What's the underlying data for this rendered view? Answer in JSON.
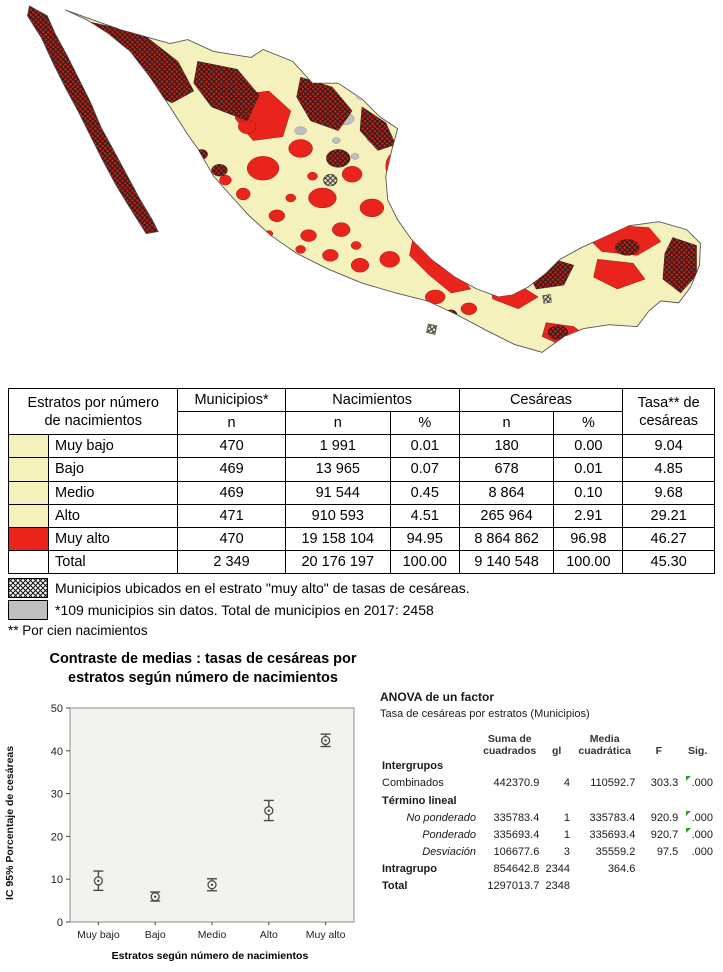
{
  "map": {
    "region_colors": {
      "estratos_bajos_a_alto": "#F5F1BC",
      "estrato_muy_alto": "#E8241C",
      "sin_datos": "#BFBFBF",
      "hatch_tasa_muy_alto": "#1B1B1B"
    }
  },
  "table": {
    "header": {
      "col1_line1": "Estratos por número",
      "col1_line2": "de nacimientos",
      "municipios": "Municipios*",
      "municipios_sub": "n",
      "nacimientos": "Nacimientos",
      "cesareas": "Cesáreas",
      "sub_n": "n",
      "sub_pct": "%",
      "tasa_line1": "Tasa** de",
      "tasa_line2": "cesáreas"
    },
    "rows": [
      {
        "label": "Muy bajo",
        "swatch": "cream",
        "municipios": "470",
        "nac_n": "1 991",
        "nac_pct": "0.01",
        "ces_n": "180",
        "ces_pct": "0.00",
        "tasa": "9.04"
      },
      {
        "label": "Bajo",
        "swatch": "cream",
        "municipios": "469",
        "nac_n": "13 965",
        "nac_pct": "0.07",
        "ces_n": "678",
        "ces_pct": "0.01",
        "tasa": "4.85"
      },
      {
        "label": "Medio",
        "swatch": "cream",
        "municipios": "469",
        "nac_n": "91 544",
        "nac_pct": "0.45",
        "ces_n": "8 864",
        "ces_pct": "0.10",
        "tasa": "9.68"
      },
      {
        "label": "Alto",
        "swatch": "cream",
        "municipios": "471",
        "nac_n": "910 593",
        "nac_pct": "4.51",
        "ces_n": "265 964",
        "ces_pct": "2.91",
        "tasa": "29.21"
      },
      {
        "label": "Muy alto",
        "swatch": "red",
        "municipios": "470",
        "nac_n": "19 158 104",
        "nac_pct": "94.95",
        "ces_n": "8 864 862",
        "ces_pct": "96.98",
        "tasa": "46.27"
      },
      {
        "label": "Total",
        "swatch": "none",
        "municipios": "2 349",
        "nac_n": "20 176 197",
        "nac_pct": "100.00",
        "ces_n": "9 140 548",
        "ces_pct": "100.00",
        "tasa": "45.30"
      }
    ]
  },
  "notes": [
    "Municipios ubicados en el estrato \"muy alto\" de tasas de cesáreas.",
    "*109 municipios sin datos. Total de municipios en 2017: 2458",
    "** Por cien nacimientos"
  ],
  "chart": {
    "title_line1": "Contraste de medias : tasas de cesáreas por",
    "title_line2": "estratos según número de nacimientos"
  },
  "chart_data": {
    "type": "errorbar",
    "title": "Contraste de medias : tasas de cesáreas por estratos según número de nacimientos",
    "categories": [
      "Muy bajo",
      "Bajo",
      "Medio",
      "Alto",
      "Muy alto"
    ],
    "means": [
      9.6,
      5.9,
      8.7,
      26.0,
      42.4
    ],
    "ci_low": [
      7.4,
      4.9,
      7.3,
      23.7,
      41.0
    ],
    "ci_high": [
      11.9,
      7.0,
      10.1,
      28.4,
      43.9
    ],
    "ylabel": "IC 95% Porcentaje de cesáreas",
    "xlabel": "Estratos  según número de nacimientos",
    "ylim": [
      0,
      50
    ],
    "yticks": [
      0,
      10,
      20,
      30,
      40,
      50
    ],
    "grid": false,
    "legend_position": "none"
  },
  "anova": {
    "title": "ANOVA de un factor",
    "subtitle": "Tasa de cesáreas por estratos (Municipios)",
    "columns": [
      "Suma de cuadrados",
      "gl",
      "Media cuadrática",
      "F",
      "Sig."
    ],
    "rows": [
      {
        "label": "Intergrupos",
        "level": 0,
        "bold": true,
        "ss": "",
        "gl": "",
        "ms": "",
        "f": "",
        "sig": "",
        "sig_marker": false
      },
      {
        "label": "Combinados",
        "level": 1,
        "bold": false,
        "ss": "442370.9",
        "gl": "4",
        "ms": "110592.7",
        "f": "303.3",
        "sig": ".000",
        "sig_marker": true
      },
      {
        "label": "Término lineal",
        "level": 1,
        "bold": true,
        "ss": "",
        "gl": "",
        "ms": "",
        "f": "",
        "sig": "",
        "sig_marker": false
      },
      {
        "label": "No ponderado",
        "level": 2,
        "italic": true,
        "ss": "335783.4",
        "gl": "1",
        "ms": "335783.4",
        "f": "920.9",
        "sig": ".000",
        "sig_marker": true
      },
      {
        "label": "Ponderado",
        "level": 2,
        "italic": true,
        "ss": "335693.4",
        "gl": "1",
        "ms": "335693.4",
        "f": "920.7",
        "sig": ".000",
        "sig_marker": true
      },
      {
        "label": "Desviación",
        "level": 2,
        "italic": true,
        "ss": "106677.6",
        "gl": "3",
        "ms": "35559.2",
        "f": "97.5",
        "sig": ".000",
        "sig_marker": false
      },
      {
        "label": "Intragrupo",
        "level": 0,
        "bold": true,
        "ss": "854642.8",
        "gl": "2344",
        "ms": "364.6",
        "f": "",
        "sig": "",
        "sig_marker": false
      },
      {
        "label": "Total",
        "level": 0,
        "bold": true,
        "ss": "1297013.7",
        "gl": "2348",
        "ms": "",
        "f": "",
        "sig": "",
        "sig_marker": false
      }
    ]
  }
}
